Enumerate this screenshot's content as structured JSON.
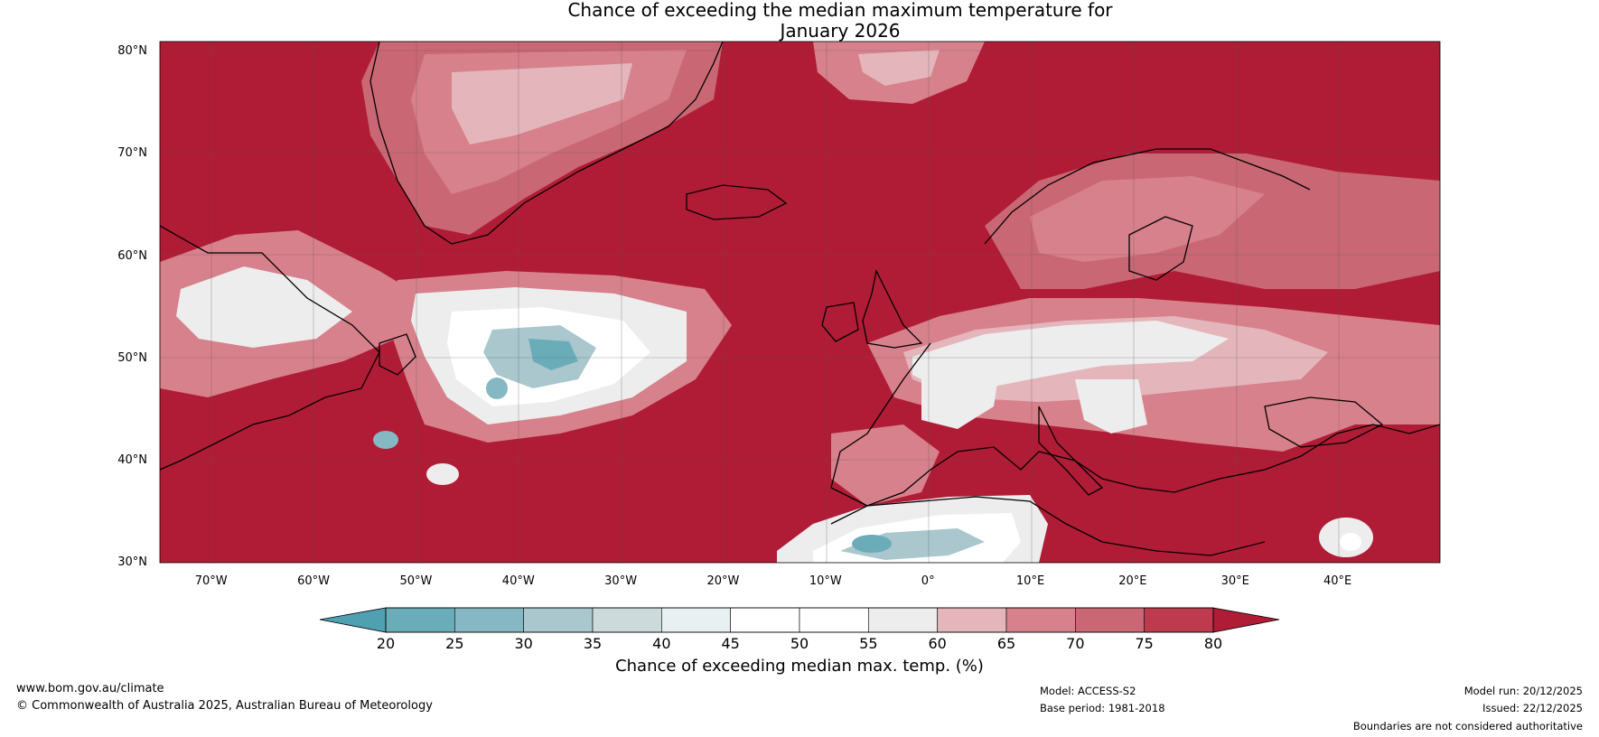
{
  "title_line1": "Chance of exceeding the median maximum temperature for",
  "title_line2": "January 2026",
  "lat_labels": [
    "80°N",
    "70°N",
    "60°N",
    "50°N",
    "40°N",
    "30°N"
  ],
  "lon_labels": [
    "70°W",
    "60°W",
    "50°W",
    "40°W",
    "30°W",
    "20°W",
    "10°W",
    "0°",
    "10°E",
    "20°E",
    "30°E",
    "40°E"
  ],
  "map_extent": {
    "lon_min": -75,
    "lon_max": 50,
    "lat_min": 30,
    "lat_max": 81
  },
  "colorbar": {
    "ticks": [
      "20",
      "25",
      "30",
      "35",
      "40",
      "45",
      "50",
      "55",
      "60",
      "65",
      "70",
      "75",
      "80"
    ],
    "colors": [
      "#4fa1b2",
      "#6aadb9",
      "#86b8c3",
      "#a9c7cd",
      "#ccdadc",
      "#e8f0f1",
      "#ffffff",
      "#ffffff",
      "#ededed",
      "#e4b6bc",
      "#d7818c",
      "#c96874",
      "#be3b4f",
      "#b01c36"
    ],
    "label": "Chance of exceeding median max. temp. (%)"
  },
  "footer": {
    "url": "www.bom.gov.au/climate",
    "copyright": "© Commonwealth of Australia 2025, Australian Bureau of Meteorology",
    "model": "Model: ACCESS-S2",
    "base_period": "Base period: 1981-2018",
    "model_run": "Model run: 20/12/2025",
    "issued": "Issued: 22/12/2025",
    "disclaimer": "Boundaries are not considered authoritative"
  },
  "palette": {
    "high": "#b01c36",
    "mid_high": "#c96874",
    "light_red": "#e4b6bc",
    "neutral": "#ededed",
    "teal": "#4fa1b2"
  }
}
